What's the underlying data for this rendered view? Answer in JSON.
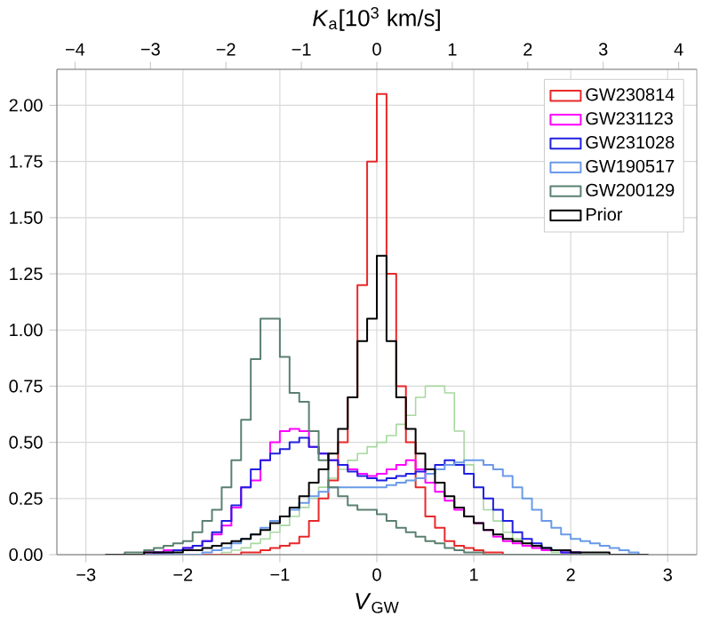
{
  "chart_data": {
    "type": "histogram",
    "xlabel": "*V*$_{GW}$",
    "x2label": "*K*$_{a}$[10$^{3}$ km/s]",
    "bins": [
      -2.8,
      -2.7,
      -2.6,
      -2.5,
      -2.4,
      -2.3,
      -2.2,
      -2.1,
      -2.0,
      -1.9,
      -1.8,
      -1.7,
      -1.6,
      -1.5,
      -1.4,
      -1.3,
      -1.2,
      -1.1,
      -1.0,
      -0.9,
      -0.8,
      -0.7,
      -0.6,
      -0.5,
      -0.4,
      -0.3,
      -0.2,
      -0.1,
      0.0,
      0.1,
      0.2,
      0.3,
      0.4,
      0.5,
      0.6,
      0.7,
      0.8,
      0.9,
      1.0,
      1.1,
      1.2,
      1.3,
      1.4,
      1.5,
      1.6,
      1.7,
      1.8,
      1.9,
      2.0,
      2.1,
      2.2,
      2.3,
      2.4,
      2.5,
      2.6,
      2.7,
      2.8
    ],
    "series": [
      {
        "color": "#a8d8a0",
        "values": [
          0,
          0,
          0,
          0,
          0,
          0,
          0,
          0,
          0,
          0,
          0,
          0,
          0.01,
          0.02,
          0.03,
          0.05,
          0.07,
          0.1,
          0.13,
          0.17,
          0.21,
          0.25,
          0.3,
          0.34,
          0.38,
          0.42,
          0.45,
          0.48,
          0.5,
          0.53,
          0.58,
          0.62,
          0.7,
          0.75,
          0.75,
          0.72,
          0.55,
          0.4,
          0.3,
          0.2,
          0.15,
          0.1,
          0.07,
          0.05,
          0.03,
          0.02,
          0.01,
          0.01,
          0,
          0,
          0,
          0,
          0,
          0,
          0,
          0
        ]
      },
      {
        "name": "GW230814",
        "color": "#e8282a",
        "values": [
          0,
          0,
          0,
          0,
          0,
          0,
          0,
          0,
          0,
          0,
          0,
          0,
          0,
          0,
          0.01,
          0.01,
          0.02,
          0.03,
          0.04,
          0.05,
          0.08,
          0.15,
          0.25,
          0.33,
          0.5,
          0.7,
          1.2,
          1.75,
          2.05,
          1.25,
          0.75,
          0.5,
          0.3,
          0.17,
          0.12,
          0.06,
          0.04,
          0.03,
          0.02,
          0.01,
          0.01,
          0,
          0,
          0,
          0,
          0,
          0,
          0,
          0,
          0,
          0,
          0,
          0,
          0,
          0,
          0
        ]
      },
      {
        "name": "GW231123",
        "color": "#ff00ff",
        "values": [
          0,
          0,
          0,
          0,
          0.01,
          0.01,
          0.02,
          0.02,
          0.03,
          0.04,
          0.06,
          0.09,
          0.13,
          0.21,
          0.3,
          0.33,
          0.42,
          0.5,
          0.55,
          0.56,
          0.55,
          0.48,
          0.45,
          0.42,
          0.4,
          0.38,
          0.36,
          0.35,
          0.36,
          0.38,
          0.4,
          0.42,
          0.38,
          0.32,
          0.28,
          0.24,
          0.2,
          0.17,
          0.14,
          0.11,
          0.08,
          0.06,
          0.05,
          0.04,
          0.03,
          0.02,
          0.02,
          0.01,
          0.01,
          0,
          0,
          0,
          0,
          0,
          0,
          0
        ]
      },
      {
        "name": "GW231028",
        "color": "#2020e0",
        "values": [
          0,
          0,
          0,
          0,
          0,
          0.01,
          0.01,
          0.02,
          0.03,
          0.04,
          0.06,
          0.1,
          0.15,
          0.22,
          0.3,
          0.38,
          0.42,
          0.45,
          0.47,
          0.5,
          0.52,
          0.48,
          0.45,
          0.42,
          0.4,
          0.37,
          0.35,
          0.34,
          0.33,
          0.34,
          0.35,
          0.36,
          0.37,
          0.38,
          0.4,
          0.42,
          0.4,
          0.36,
          0.3,
          0.25,
          0.2,
          0.15,
          0.1,
          0.07,
          0.05,
          0.03,
          0.02,
          0.01,
          0.01,
          0,
          0,
          0,
          0,
          0,
          0,
          0
        ]
      },
      {
        "name": "GW190517",
        "color": "#6a9ae8",
        "values": [
          0,
          0,
          0,
          0,
          0,
          0,
          0,
          0,
          0,
          0,
          0.01,
          0.02,
          0.03,
          0.05,
          0.07,
          0.09,
          0.12,
          0.15,
          0.17,
          0.2,
          0.23,
          0.26,
          0.28,
          0.3,
          0.3,
          0.3,
          0.3,
          0.3,
          0.3,
          0.31,
          0.32,
          0.33,
          0.34,
          0.36,
          0.38,
          0.4,
          0.41,
          0.42,
          0.42,
          0.4,
          0.38,
          0.35,
          0.3,
          0.25,
          0.2,
          0.15,
          0.12,
          0.09,
          0.07,
          0.06,
          0.05,
          0.04,
          0.03,
          0.02,
          0.01,
          0
        ]
      },
      {
        "name": "GW200129",
        "color": "#5a8070",
        "values": [
          0,
          0,
          0.01,
          0.01,
          0.02,
          0.03,
          0.04,
          0.05,
          0.06,
          0.1,
          0.15,
          0.2,
          0.3,
          0.42,
          0.6,
          0.87,
          1.05,
          1.05,
          0.88,
          0.72,
          0.68,
          0.55,
          0.42,
          0.3,
          0.26,
          0.22,
          0.2,
          0.2,
          0.18,
          0.15,
          0.12,
          0.1,
          0.08,
          0.06,
          0.05,
          0.03,
          0.02,
          0.01,
          0.01,
          0,
          0,
          0,
          0,
          0,
          0,
          0,
          0,
          0,
          0,
          0,
          0,
          0,
          0,
          0,
          0,
          0
        ]
      },
      {
        "name": "Prior",
        "color": "#000000",
        "values": [
          0,
          0,
          0,
          0,
          0.01,
          0.01,
          0.01,
          0.01,
          0.02,
          0.02,
          0.03,
          0.04,
          0.05,
          0.06,
          0.07,
          0.09,
          0.11,
          0.14,
          0.17,
          0.21,
          0.26,
          0.32,
          0.38,
          0.45,
          0.56,
          0.7,
          0.95,
          1.05,
          1.33,
          0.95,
          0.7,
          0.56,
          0.45,
          0.38,
          0.32,
          0.26,
          0.21,
          0.17,
          0.14,
          0.11,
          0.09,
          0.07,
          0.06,
          0.05,
          0.04,
          0.03,
          0.02,
          0.02,
          0.01,
          0.01,
          0.01,
          0.01,
          0,
          0,
          0,
          0
        ]
      }
    ],
    "xlim": [
      -3.3,
      3.3
    ],
    "ylim": [
      0,
      2.16
    ],
    "xticks": [
      {
        "value": -3,
        "label": "−3"
      },
      {
        "value": -2,
        "label": "−2"
      },
      {
        "value": -1,
        "label": "−1"
      },
      0,
      1,
      2,
      3
    ],
    "x2lim": [
      -4.24,
      4.24
    ],
    "x2ticks": [
      {
        "value": -4,
        "label": "−4"
      },
      {
        "value": -3,
        "label": "−3"
      },
      {
        "value": -2,
        "label": "−2"
      },
      {
        "value": -1,
        "label": "−1"
      },
      0,
      1,
      2,
      3,
      4
    ],
    "yticks": [
      {
        "value": 0,
        "label": "0.00"
      },
      {
        "value": 0.25,
        "label": "0.25"
      },
      {
        "value": 0.5,
        "label": "0.50"
      },
      {
        "value": 0.75,
        "label": "0.75"
      },
      {
        "value": 1.0,
        "label": "1.00"
      },
      {
        "value": 1.25,
        "label": "1.25"
      },
      {
        "value": 1.5,
        "label": "1.50"
      },
      {
        "value": 1.75,
        "label": "1.75"
      },
      {
        "value": 2.0,
        "label": "2.00"
      }
    ],
    "grid": true,
    "legend": "top right"
  }
}
